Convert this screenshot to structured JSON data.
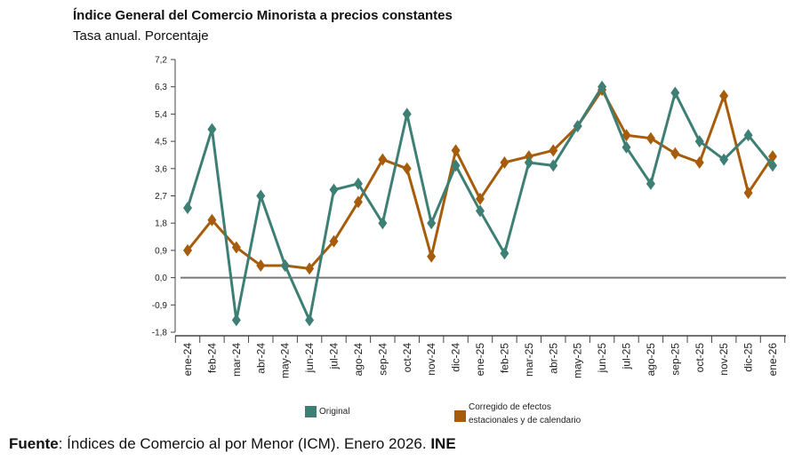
{
  "title": "Índice General del Comercio Minorista a precios constantes",
  "subtitle": "Tasa anual. Porcentaje",
  "source": {
    "label": "Fuente",
    "text": ": Índices de Comercio al por Menor (ICM). Enero 2026. ",
    "org": "INE"
  },
  "chart_data": {
    "type": "line",
    "categories": [
      "ene-24",
      "feb-24",
      "mar-24",
      "abr-24",
      "may-24",
      "jun-24",
      "jul-24",
      "ago-24",
      "sep-24",
      "oct-24",
      "nov-24",
      "dic-24",
      "ene-25",
      "feb-25",
      "mar-25",
      "abr-25",
      "may-25",
      "jun-25",
      "jul-25",
      "ago-25",
      "sep-25",
      "oct-25",
      "nov-25",
      "dic-25",
      "ene-26"
    ],
    "yticks": [
      "7,2",
      "6,3",
      "5,4",
      "4,5",
      "3,6",
      "2,7",
      "1,8",
      "0,9",
      "0,0",
      "-0,9",
      "-1,8"
    ],
    "ylim": [
      -1.8,
      7.2
    ],
    "grid": false,
    "legend_position": "bottom",
    "series": [
      {
        "name": "Original",
        "color": "#3d7f74",
        "values": [
          2.3,
          4.9,
          -1.4,
          2.7,
          0.4,
          -1.4,
          2.9,
          3.1,
          1.8,
          5.4,
          1.8,
          3.7,
          2.2,
          0.8,
          3.8,
          3.7,
          5.0,
          6.3,
          4.3,
          3.1,
          6.1,
          4.5,
          3.9,
          4.7,
          3.7
        ]
      },
      {
        "name": "Corregido de efectos estacionales y de calendario",
        "name_lines": [
          "Corregido de efectos",
          "estacionales y de calendario"
        ],
        "color": "#a65c0a",
        "values": [
          0.9,
          1.9,
          1.0,
          0.4,
          0.4,
          0.3,
          1.2,
          2.5,
          3.9,
          3.6,
          0.7,
          4.2,
          2.6,
          3.8,
          4.0,
          4.2,
          5.0,
          6.2,
          4.7,
          4.6,
          4.1,
          3.8,
          6.0,
          2.8,
          4.0
        ]
      }
    ]
  }
}
